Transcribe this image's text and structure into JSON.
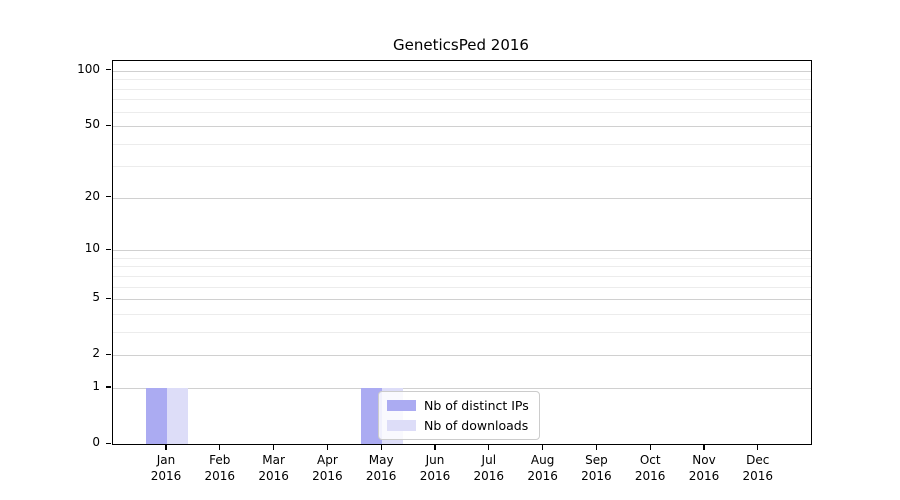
{
  "chart_data": {
    "type": "bar",
    "title": "GeneticsPed 2016",
    "categories": [
      "Jan 2016",
      "Feb 2016",
      "Mar 2016",
      "Apr 2016",
      "May 2016",
      "Jun 2016",
      "Jul 2016",
      "Aug 2016",
      "Sep 2016",
      "Oct 2016",
      "Nov 2016",
      "Dec 2016"
    ],
    "series": [
      {
        "name": "Nb of distinct IPs",
        "color": "#ababf2",
        "values": [
          1,
          0,
          0,
          0,
          1,
          0,
          0,
          0,
          0,
          0,
          0,
          0
        ]
      },
      {
        "name": "Nb of downloads",
        "color": "#ddddf8",
        "values": [
          1,
          0,
          0,
          0,
          1,
          0,
          0,
          0,
          0,
          0,
          0,
          0
        ]
      }
    ],
    "xlabel": "",
    "ylabel": "",
    "yscale": "log1p",
    "ylim": [
      0,
      113
    ],
    "y_major_ticks": [
      0,
      1,
      2,
      5,
      10,
      20,
      50,
      100
    ],
    "y_minor_gridlines": [
      3,
      4,
      6,
      7,
      8,
      9,
      30,
      40,
      60,
      70,
      80,
      90
    ],
    "grid": "horizontal",
    "legend_position": "inside-bottom-center"
  },
  "colors": {
    "major_gridline": "#d0d0d0",
    "minor_gridline": "#ececec",
    "axis": "#000000",
    "legend_border": "#cccccc"
  }
}
